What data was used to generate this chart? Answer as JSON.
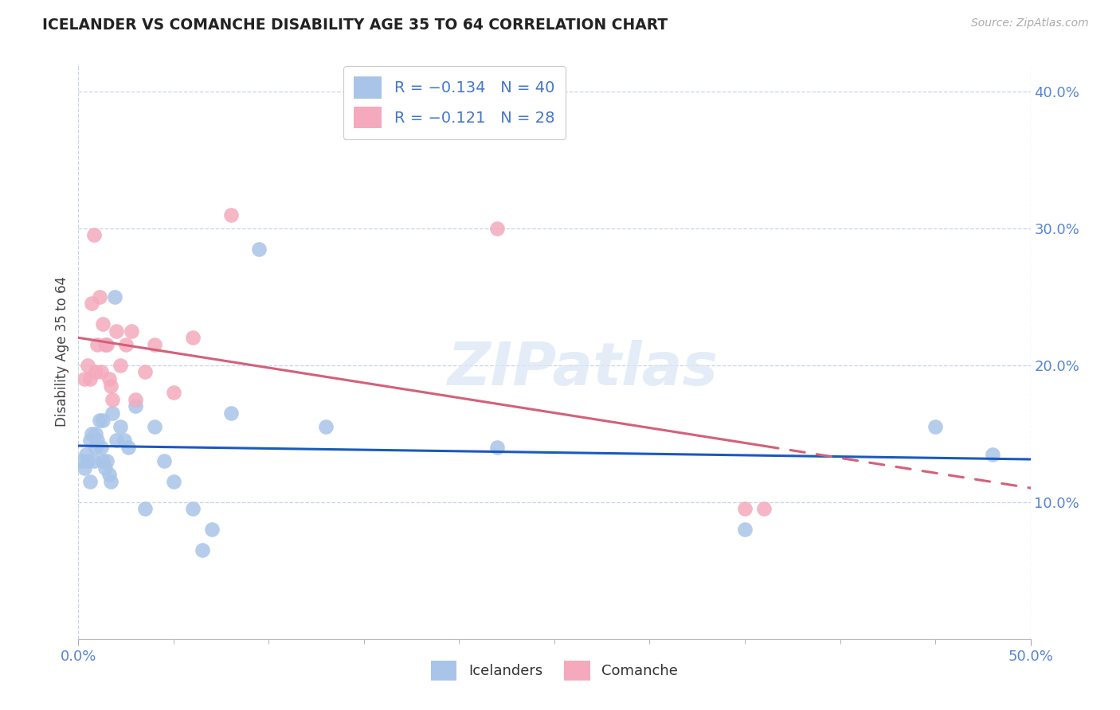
{
  "title": "ICELANDER VS COMANCHE DISABILITY AGE 35 TO 64 CORRELATION CHART",
  "source": "Source: ZipAtlas.com",
  "ylabel": "Disability Age 35 to 64",
  "xlim": [
    0.0,
    0.5
  ],
  "ylim": [
    0.0,
    0.42
  ],
  "xticks_major": [
    0.0,
    0.5
  ],
  "xticks_minor": [
    0.05,
    0.1,
    0.15,
    0.2,
    0.25,
    0.3,
    0.35,
    0.4,
    0.45
  ],
  "xticklabels_major": [
    "0.0%",
    "50.0%"
  ],
  "yticks": [
    0.0,
    0.1,
    0.2,
    0.3,
    0.4
  ],
  "yticklabels": [
    "",
    "10.0%",
    "20.0%",
    "30.0%",
    "40.0%"
  ],
  "icelanders_R": -0.134,
  "icelanders_N": 40,
  "comanche_R": -0.121,
  "comanche_N": 28,
  "blue_color": "#a8c4e8",
  "pink_color": "#f4aabc",
  "blue_line_color": "#1a5abf",
  "pink_line_color": "#d4607a",
  "watermark": "ZIPatlas",
  "icelanders_x": [
    0.002,
    0.003,
    0.004,
    0.005,
    0.006,
    0.006,
    0.007,
    0.008,
    0.009,
    0.009,
    0.01,
    0.011,
    0.012,
    0.013,
    0.013,
    0.014,
    0.015,
    0.016,
    0.017,
    0.018,
    0.019,
    0.02,
    0.022,
    0.024,
    0.026,
    0.03,
    0.035,
    0.04,
    0.045,
    0.05,
    0.06,
    0.065,
    0.07,
    0.08,
    0.095,
    0.13,
    0.22,
    0.35,
    0.45,
    0.48
  ],
  "icelanders_y": [
    0.13,
    0.125,
    0.135,
    0.13,
    0.115,
    0.145,
    0.15,
    0.13,
    0.15,
    0.14,
    0.145,
    0.16,
    0.14,
    0.16,
    0.13,
    0.125,
    0.13,
    0.12,
    0.115,
    0.165,
    0.25,
    0.145,
    0.155,
    0.145,
    0.14,
    0.17,
    0.095,
    0.155,
    0.13,
    0.115,
    0.095,
    0.065,
    0.08,
    0.165,
    0.285,
    0.155,
    0.14,
    0.08,
    0.155,
    0.135
  ],
  "comanche_x": [
    0.003,
    0.005,
    0.006,
    0.007,
    0.008,
    0.009,
    0.01,
    0.011,
    0.012,
    0.013,
    0.014,
    0.015,
    0.016,
    0.017,
    0.018,
    0.02,
    0.022,
    0.025,
    0.028,
    0.03,
    0.035,
    0.04,
    0.05,
    0.06,
    0.08,
    0.22,
    0.35,
    0.36
  ],
  "comanche_y": [
    0.19,
    0.2,
    0.19,
    0.245,
    0.295,
    0.195,
    0.215,
    0.25,
    0.195,
    0.23,
    0.215,
    0.215,
    0.19,
    0.185,
    0.175,
    0.225,
    0.2,
    0.215,
    0.225,
    0.175,
    0.195,
    0.215,
    0.18,
    0.22,
    0.31,
    0.3,
    0.095,
    0.095
  ]
}
